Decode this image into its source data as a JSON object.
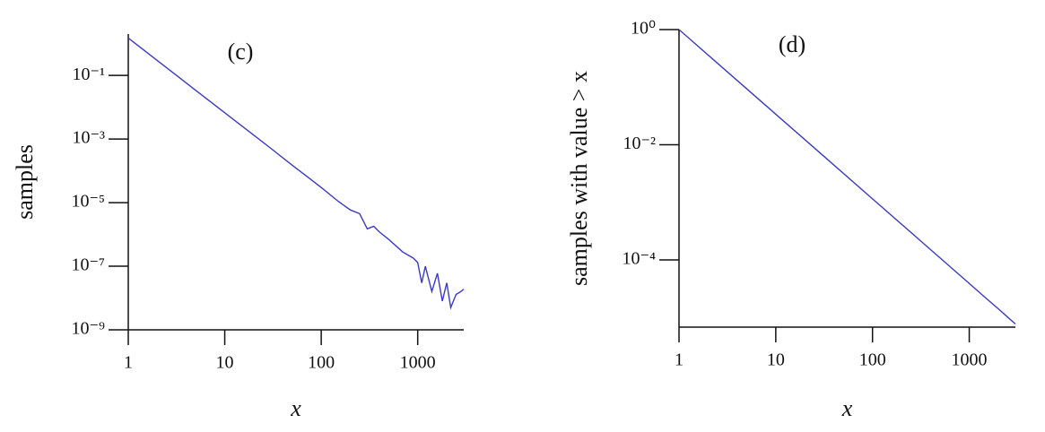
{
  "chart_data": [
    {
      "type": "line",
      "annotation": "(c)",
      "x_label": "x",
      "y_label": "samples",
      "log_x": true,
      "log_y": true,
      "color": "#3a3ac8",
      "xlim": [
        1,
        3000
      ],
      "ylim": [
        1e-09,
        2
      ],
      "xticks": [
        1,
        10,
        100,
        1000
      ],
      "yticks": [
        {
          "value": 0.1,
          "label": "10⁻¹"
        },
        {
          "value": 0.001,
          "label": "10⁻³"
        },
        {
          "value": 1e-05,
          "label": "10⁻⁵"
        },
        {
          "value": 1e-07,
          "label": "10⁻⁷"
        },
        {
          "value": 1e-09,
          "label": "10⁻⁹"
        }
      ],
      "x": [
        1,
        2,
        3,
        5,
        7,
        10,
        20,
        30,
        50,
        70,
        100,
        150,
        200,
        250,
        300,
        350,
        400,
        500,
        700,
        900,
        1000,
        1100,
        1200,
        1400,
        1600,
        1800,
        2000,
        2200,
        2500,
        2800,
        3000
      ],
      "values": [
        1.5,
        0.294,
        0.114,
        0.034,
        0.0155,
        0.0067,
        0.00132,
        0.00051,
        0.00015,
        6.9e-05,
        3e-05,
        1.1e-05,
        5.9e-06,
        4.5e-06,
        1.5e-06,
        1.8e-06,
        1.2e-06,
        7e-07,
        2.8e-07,
        1.8e-07,
        1.3e-07,
        3e-08,
        1e-07,
        1.6e-08,
        6e-08,
        8e-09,
        3e-08,
        5e-09,
        1.3e-08,
        1.6e-08,
        1.9e-08
      ]
    },
    {
      "type": "line",
      "annotation": "(d)",
      "x_label": "x",
      "y_label": "samples with value > x",
      "log_x": true,
      "log_y": true,
      "color": "#3a3ac8",
      "xlim": [
        1,
        3000
      ],
      "ylim": [
        6.8e-06,
        1
      ],
      "xticks": [
        1,
        10,
        100,
        1000
      ],
      "yticks": [
        {
          "value": 1,
          "label": "10⁰"
        },
        {
          "value": 0.01,
          "label": "10⁻²"
        },
        {
          "value": 0.0001,
          "label": "10⁻⁴"
        }
      ],
      "x": [
        1,
        3,
        10,
        30,
        100,
        300,
        1000,
        1500,
        2000,
        2500,
        3000
      ],
      "values": [
        1,
        0.199,
        0.0339,
        0.00675,
        0.00115,
        0.000229,
        3.9e-05,
        2.14e-05,
        1.41e-05,
        1.01e-05,
        7.7e-06
      ]
    }
  ]
}
